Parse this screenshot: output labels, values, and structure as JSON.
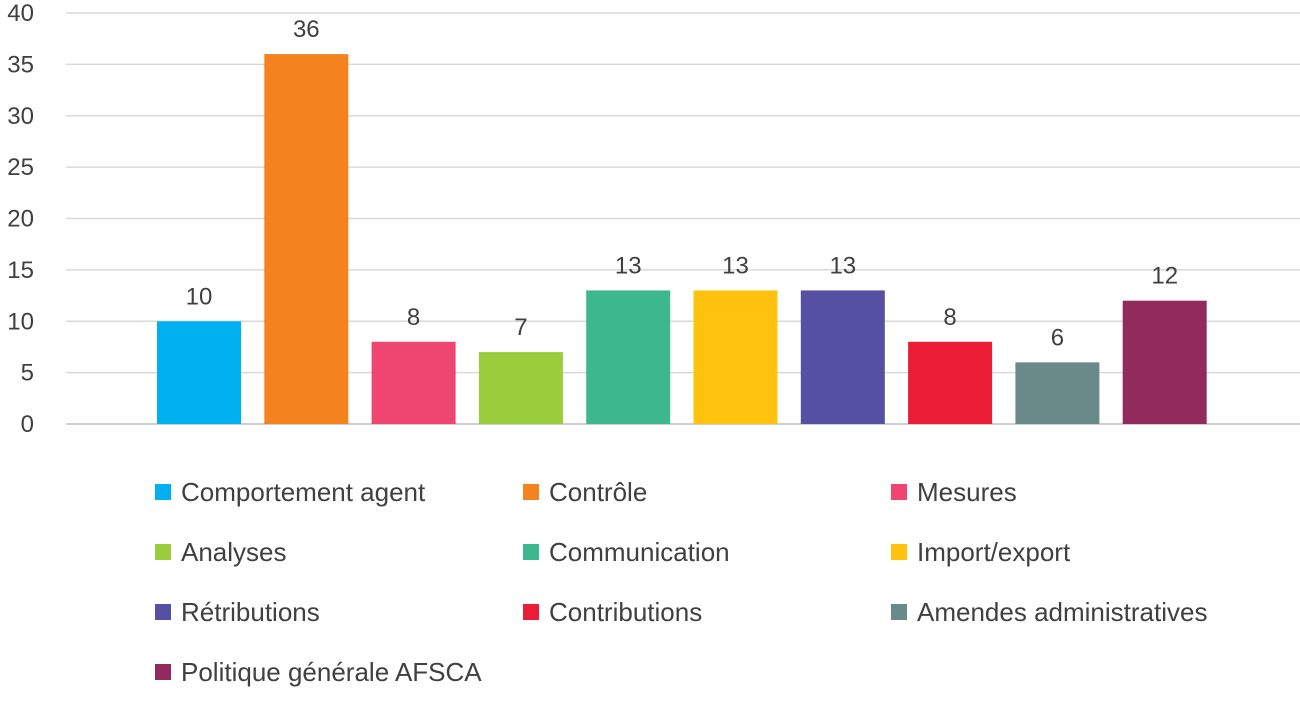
{
  "chart_data": {
    "type": "bar",
    "categories": [
      "Comportement agent",
      "Contrôle",
      "Mesures",
      "Analyses",
      "Communication",
      "Import/export",
      "Rétributions",
      "Contributions",
      "Amendes administratives",
      "Politique générale AFSCA"
    ],
    "values": [
      10,
      36,
      8,
      7,
      13,
      13,
      13,
      8,
      6,
      12
    ],
    "colors": [
      "#00B0F0",
      "#F4821F",
      "#EE4670",
      "#9ACD3C",
      "#3DB88E",
      "#FFC20E",
      "#5650A3",
      "#EB1D36",
      "#6A8A8A",
      "#922A5E"
    ],
    "ylim": [
      0,
      40
    ],
    "yticks": [
      "0",
      "5",
      "10",
      "15",
      "20",
      "25",
      "30",
      "35",
      "40"
    ],
    "grid": true,
    "legend": "bottom",
    "title": "",
    "xlabel": "",
    "ylabel": ""
  }
}
